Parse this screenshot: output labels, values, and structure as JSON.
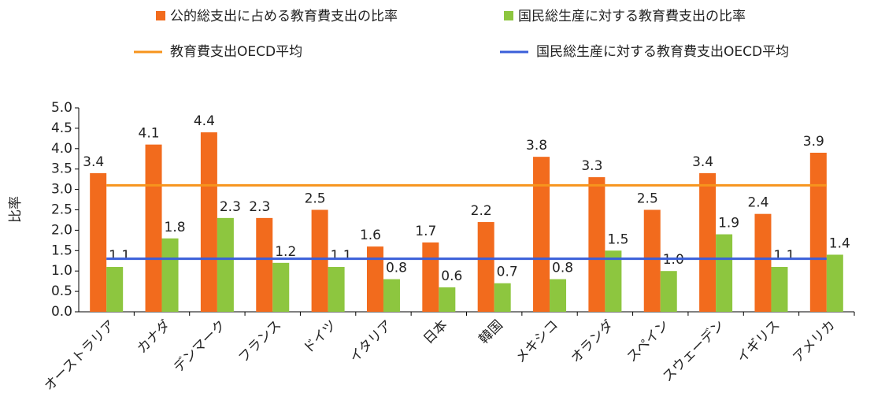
{
  "chart_data": {
    "type": "bar",
    "y_label": "比率",
    "categories": [
      "オーストラリア",
      "カナダ",
      "デンマーク",
      "フランス",
      "ドイツ",
      "イタリア",
      "日本",
      "韓国",
      "メキシコ",
      "オランダ",
      "スペイン",
      "スウェーデン",
      "イギリス",
      "アメリカ"
    ],
    "series": [
      {
        "name": "公的総支出に占める教育費支出の比率",
        "color": "#f26b1d",
        "values": [
          3.4,
          4.1,
          4.4,
          2.3,
          2.5,
          1.6,
          1.7,
          2.2,
          3.8,
          3.3,
          2.5,
          3.4,
          2.4,
          3.9
        ]
      },
      {
        "name": "国民総生産に対する教育費支出の比率",
        "color": "#8dc63f",
        "values": [
          1.1,
          1.8,
          2.3,
          1.2,
          1.1,
          0.8,
          0.6,
          0.7,
          0.8,
          1.5,
          1.0,
          1.9,
          1.1,
          1.4
        ],
        "value_labels": [
          "1.1",
          "1.8",
          "2.3",
          "1.2",
          "1.1",
          "0.8",
          "0.6",
          "0.7",
          "0.8",
          "1.5",
          "1.0",
          "1.9",
          "1.1",
          "1.4"
        ]
      }
    ],
    "reference_lines": [
      {
        "name": "教育費支出OECD平均",
        "color": "#f7941d",
        "value": 3.1
      },
      {
        "name": "国民総生産に対する教育費支出OECD平均",
        "color": "#3a5fd9",
        "value": 1.3
      }
    ],
    "ylim": [
      0,
      5
    ],
    "yticks": [
      {
        "value": 0,
        "label": "0.0"
      },
      0.5,
      {
        "value": 1,
        "label": "1.0"
      },
      1.5,
      {
        "value": 2,
        "label": "2.0"
      },
      2.5,
      {
        "value": 3,
        "label": "3.0"
      },
      3.5,
      {
        "value": 4,
        "label": "4.0"
      },
      4.5,
      {
        "value": 5,
        "label": "5.0"
      }
    ]
  }
}
